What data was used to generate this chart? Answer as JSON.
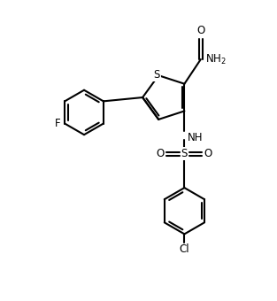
{
  "bg_color": "#ffffff",
  "line_color": "#000000",
  "bond_lw": 1.5,
  "figsize": [
    3.13,
    3.4
  ],
  "dpi": 100,
  "xlim": [
    0.0,
    10.0
  ],
  "ylim": [
    0.0,
    10.5
  ]
}
